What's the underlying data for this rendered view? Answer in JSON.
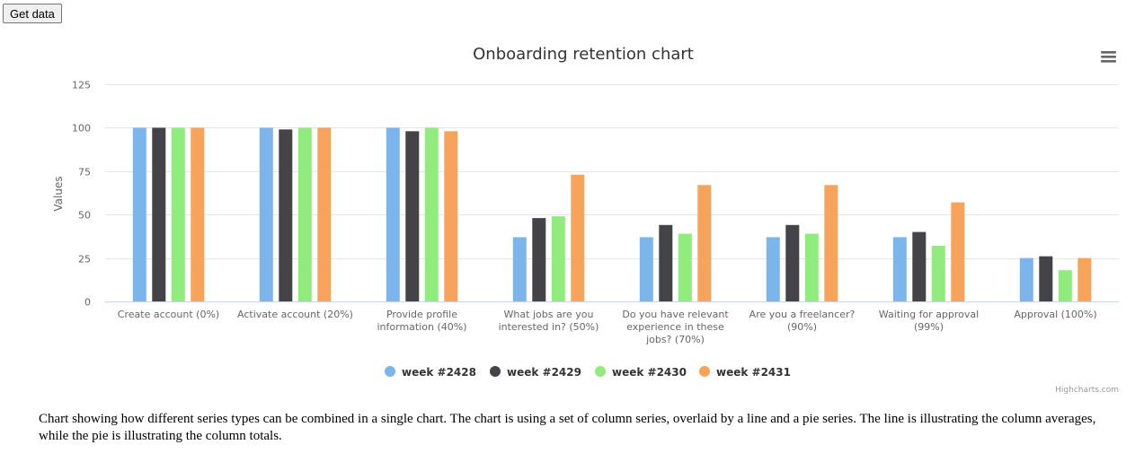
{
  "button": {
    "label": "Get data"
  },
  "description": "Chart showing how different series types can be combined in a single chart. The chart is using a set of column series, overlaid by a line and a pie series. The line is illustrating the column averages, while the pie is illustrating the column totals.",
  "credits": "Highcharts.com",
  "menu_icon": "hamburger-menu-icon",
  "chart_data": {
    "type": "bar",
    "title": "Onboarding retention chart",
    "ylabel": "Values",
    "xlabel": "",
    "ylim": [
      0,
      125
    ],
    "yticks": [
      0,
      25,
      50,
      75,
      100,
      125
    ],
    "grid": true,
    "legend_position": "bottom-center",
    "categories": [
      "Create account (0%)",
      "Activate account (20%)",
      "Provide profile information (40%)",
      "What jobs are you interested in? (50%)",
      "Do you have relevant experience in these jobs? (70%)",
      "Are you a freelancer? (90%)",
      "Waiting for approval (99%)",
      "Approval (100%)"
    ],
    "category_lines": [
      [
        "Create account (0%)"
      ],
      [
        "Activate account (20%)"
      ],
      [
        "Provide profile",
        "information (40%)"
      ],
      [
        "What jobs are you",
        "interested in? (50%)"
      ],
      [
        "Do you have relevant",
        "experience in these",
        "jobs? (70%)"
      ],
      [
        "Are you a freelancer?",
        "(90%)"
      ],
      [
        "Waiting for approval",
        "(99%)"
      ],
      [
        "Approval (100%)"
      ]
    ],
    "series": [
      {
        "name": "week #2428",
        "color": "#7cb5ec",
        "values": [
          100,
          100,
          100,
          37,
          37,
          37,
          37,
          25
        ]
      },
      {
        "name": "week #2429",
        "color": "#434348",
        "values": [
          100,
          99,
          98,
          48,
          44,
          44,
          40,
          26
        ]
      },
      {
        "name": "week #2430",
        "color": "#90ed7d",
        "values": [
          100,
          100,
          100,
          49,
          39,
          39,
          32,
          18
        ]
      },
      {
        "name": "week #2431",
        "color": "#f7a35c",
        "values": [
          100,
          100,
          98,
          73,
          67,
          67,
          57,
          25
        ]
      }
    ]
  }
}
